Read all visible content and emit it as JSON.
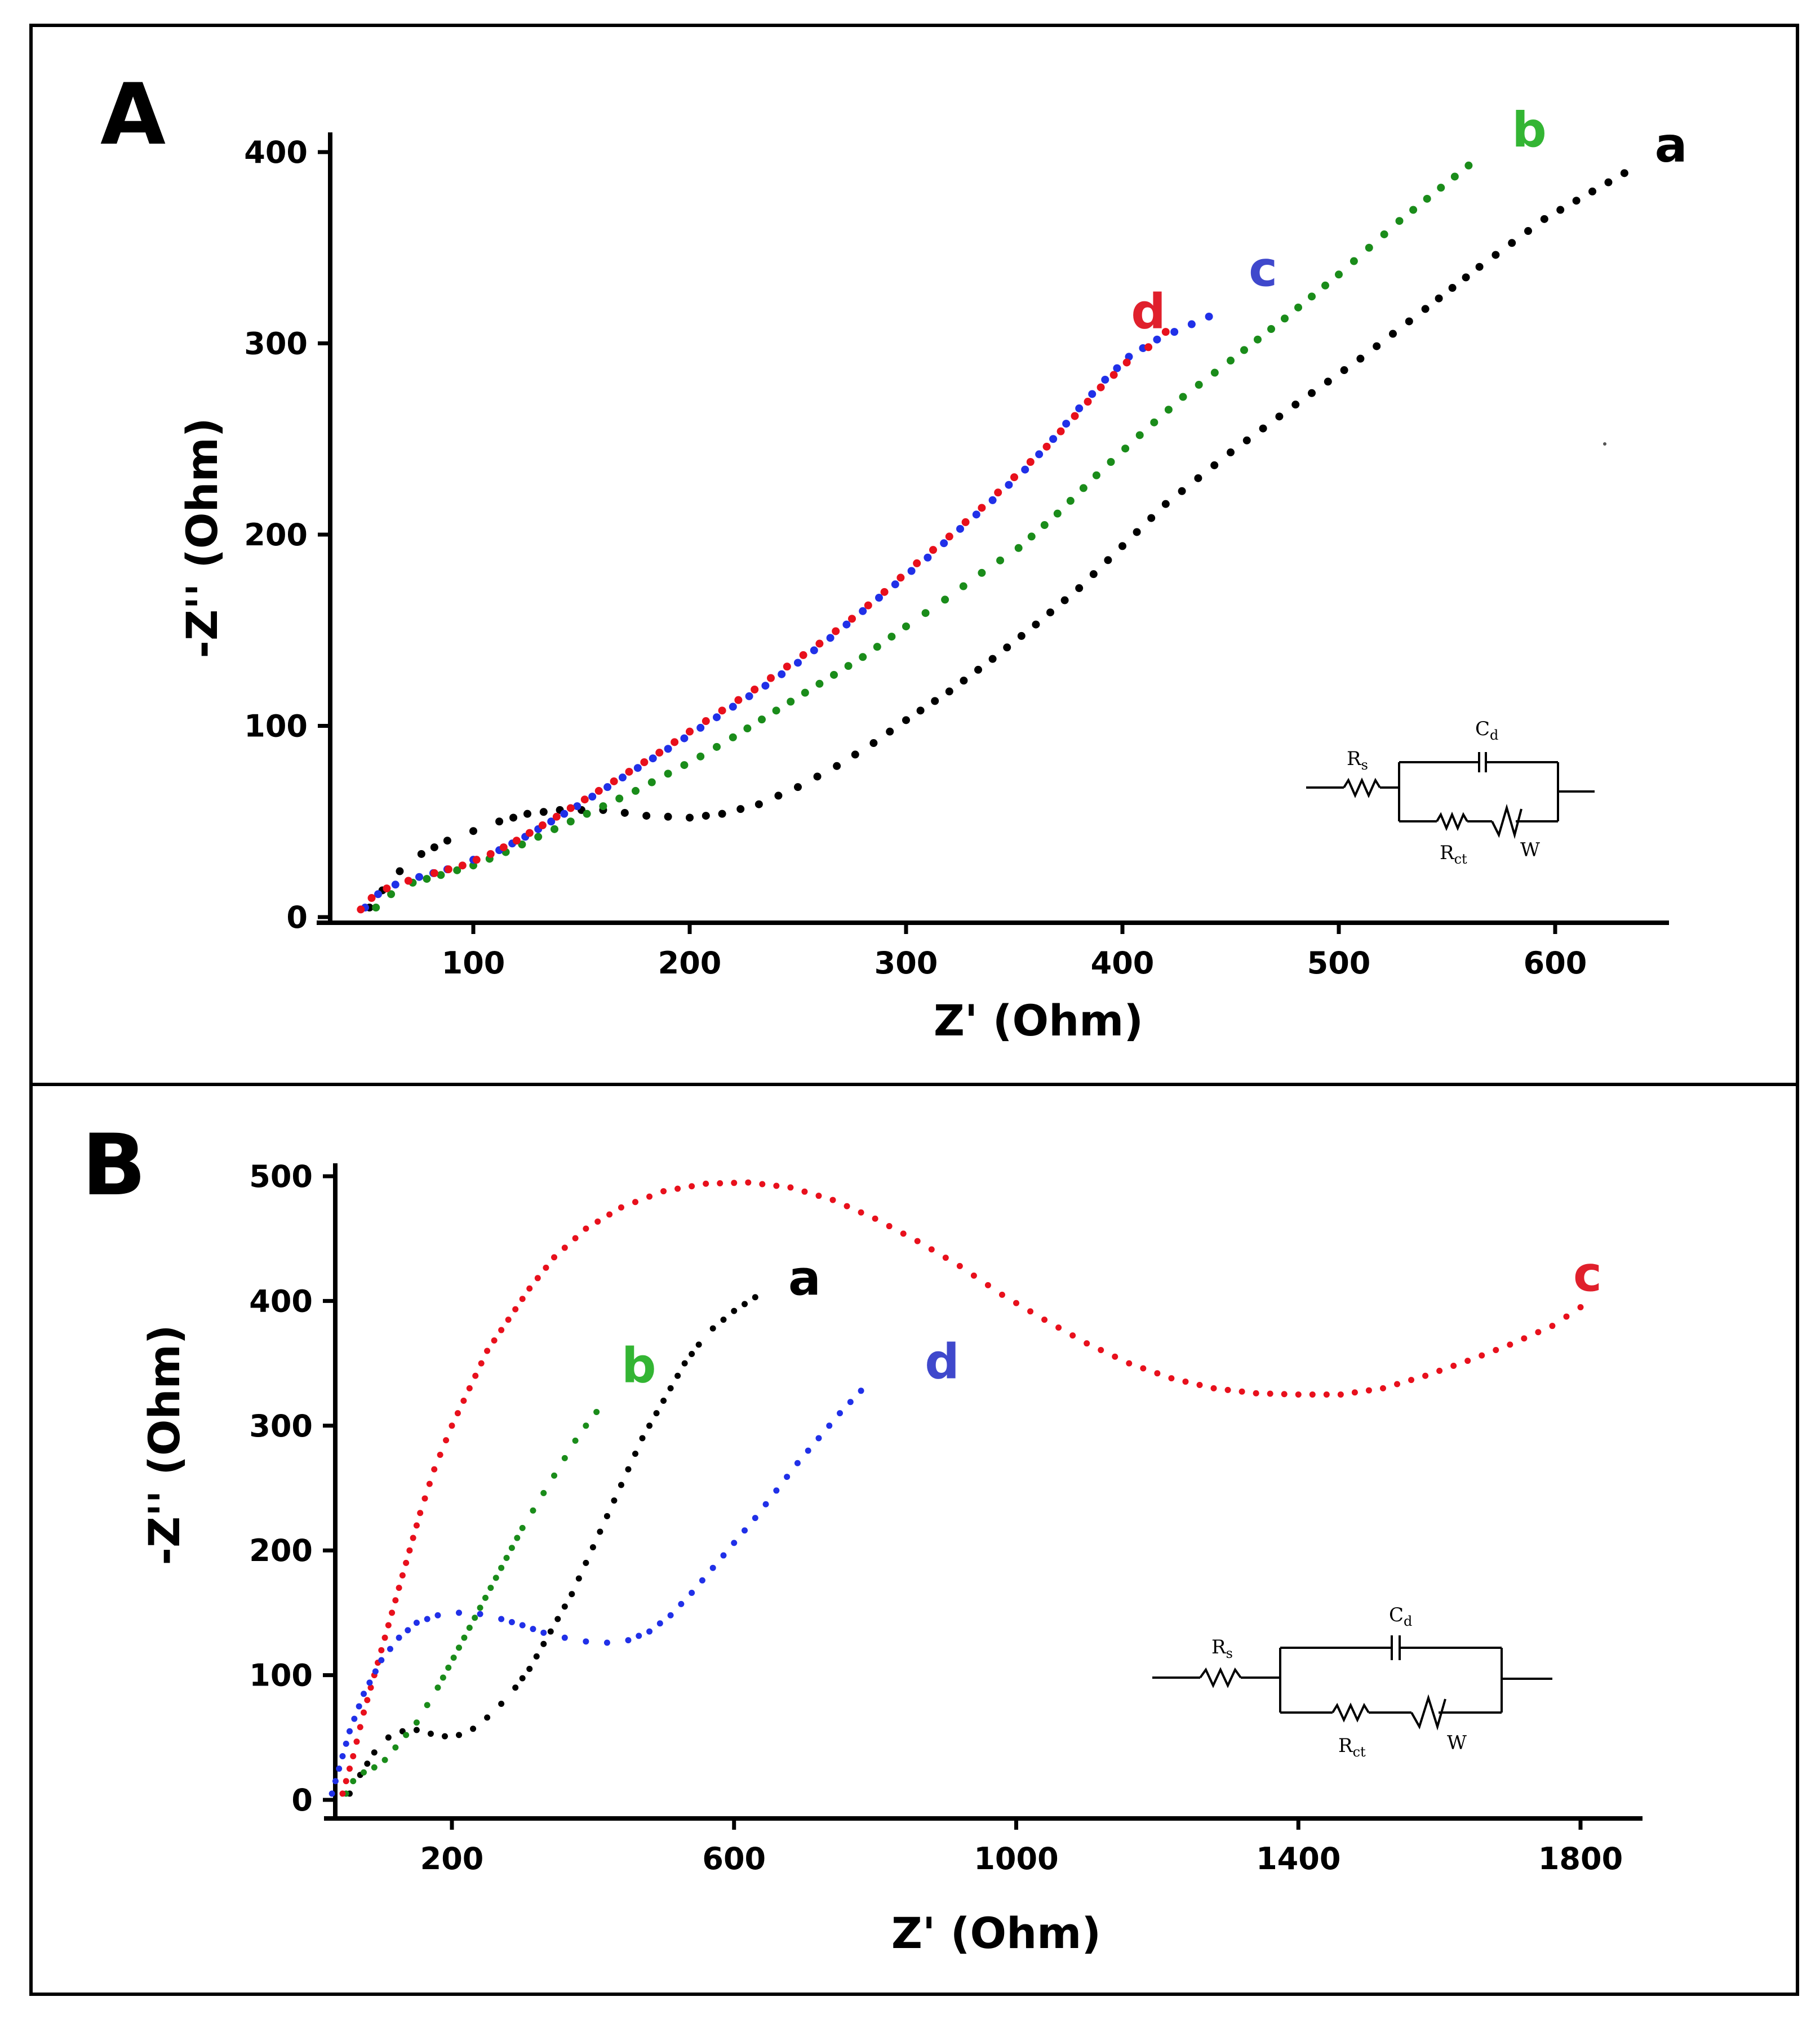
{
  "colors": {
    "a": "#000000",
    "b": "#1a8c1a",
    "c": "#e8101c",
    "d": "#2030e8",
    "label_b": "#33b533",
    "label_c_A": "#3f48cc",
    "label_d_A": "#e0202c",
    "label_c_B": "#e0202c",
    "label_d_B": "#3f48cc"
  },
  "chart_data": [
    {
      "panel": "A",
      "type": "scatter",
      "panel_label": "A",
      "xlabel": "Z' (Ohm)",
      "ylabel": "-Z'' (Ohm)",
      "xlim": [
        40,
        650
      ],
      "ylim": [
        -3,
        410
      ],
      "xticks": [
        100,
        200,
        300,
        400,
        500,
        600
      ],
      "yticks": [
        0,
        100,
        200,
        300,
        400
      ],
      "xtick_labels": [
        "100",
        "200",
        "300",
        "400",
        "500",
        "600"
      ],
      "ytick_labels": [
        "0",
        "100",
        "200",
        "300",
        "400"
      ],
      "circuit": {
        "rs": "R",
        "rs_sub": "s",
        "cd": "C",
        "cd_sub": "d",
        "rct": "R",
        "rct_sub": "ct",
        "w": "W"
      },
      "series": [
        {
          "name": "a",
          "label": "a",
          "color_key": "a",
          "label_color_key": "a",
          "label_pos": [
            646,
            395
          ],
          "label_anchor": "start",
          "points": [
            [
              52,
              5
            ],
            [
              58,
              14
            ],
            [
              66,
              24
            ],
            [
              76,
              33
            ],
            [
              88,
              40
            ],
            [
              100,
              45
            ],
            [
              112,
              50
            ],
            [
              125,
              54
            ],
            [
              140,
              56
            ],
            [
              160,
              56
            ],
            [
              180,
              53
            ],
            [
              200,
              52
            ],
            [
              215,
              54
            ],
            [
              232,
              59
            ],
            [
              250,
              68
            ],
            [
              268,
              79
            ],
            [
              285,
              91
            ],
            [
              300,
              103
            ],
            [
              320,
              118
            ],
            [
              340,
              135
            ],
            [
              360,
              153
            ],
            [
              380,
              172
            ],
            [
              400,
              194
            ],
            [
              420,
              216
            ],
            [
              450,
              243
            ],
            [
              480,
              268
            ],
            [
              510,
              292
            ],
            [
              540,
              318
            ],
            [
              565,
              340
            ],
            [
              595,
              365
            ],
            [
              632,
              389
            ]
          ]
        },
        {
          "name": "b",
          "label": "b",
          "color_key": "b",
          "label_color_key": "label_b",
          "label_pos": [
            580,
            403
          ],
          "label_anchor": "start",
          "points": [
            [
              55,
              5
            ],
            [
              62,
              12
            ],
            [
              72,
              18
            ],
            [
              85,
              22
            ],
            [
              100,
              27
            ],
            [
              115,
              34
            ],
            [
              130,
              42
            ],
            [
              145,
              50
            ],
            [
              160,
              58
            ],
            [
              175,
              66
            ],
            [
              190,
              75
            ],
            [
              205,
              84
            ],
            [
              220,
              94
            ],
            [
              240,
              108
            ],
            [
              260,
              122
            ],
            [
              280,
              136
            ],
            [
              300,
              152
            ],
            [
              318,
              166
            ],
            [
              335,
              180
            ],
            [
              352,
              193
            ],
            [
              370,
              211
            ],
            [
              388,
              231
            ],
            [
              408,
              252
            ],
            [
              428,
              272
            ],
            [
              450,
              291
            ],
            [
              475,
              313
            ],
            [
              500,
              336
            ],
            [
              528,
              364
            ],
            [
              560,
              393
            ]
          ]
        },
        {
          "name": "c",
          "label": "c",
          "color_key": "d",
          "label_color_key": "label_c_A",
          "label_pos": [
            465,
            330
          ],
          "label_anchor": "middle",
          "points": [
            [
              50,
              5
            ],
            [
              56,
              12
            ],
            [
              64,
              17
            ],
            [
              75,
              21
            ],
            [
              88,
              25
            ],
            [
              100,
              30
            ],
            [
              112,
              35
            ],
            [
              124,
              42
            ],
            [
              136,
              50
            ],
            [
              148,
              58
            ],
            [
              162,
              68
            ],
            [
              176,
              78
            ],
            [
              190,
              88
            ],
            [
              205,
              99
            ],
            [
              220,
              110
            ],
            [
              235,
              121
            ],
            [
              250,
              133
            ],
            [
              265,
              146
            ],
            [
              280,
              160
            ],
            [
              295,
              174
            ],
            [
              310,
              188
            ],
            [
              325,
              203
            ],
            [
              340,
              218
            ],
            [
              355,
              234
            ],
            [
              368,
              250
            ],
            [
              380,
              266
            ],
            [
              392,
              281
            ],
            [
              403,
              293
            ],
            [
              416,
              302
            ],
            [
              440,
              314
            ]
          ]
        },
        {
          "name": "d",
          "label": "d",
          "color_key": "c",
          "label_color_key": "label_d_A",
          "label_pos": [
            412,
            308
          ],
          "label_anchor": "middle",
          "points": [
            [
              48,
              4
            ],
            [
              53,
              10
            ],
            [
              60,
              15
            ],
            [
              70,
              19
            ],
            [
              82,
              23
            ],
            [
              95,
              27
            ],
            [
              108,
              33
            ],
            [
              120,
              40
            ],
            [
              132,
              48
            ],
            [
              145,
              57
            ],
            [
              158,
              66
            ],
            [
              172,
              76
            ],
            [
              186,
              86
            ],
            [
              200,
              97
            ],
            [
              215,
              108
            ],
            [
              230,
              119
            ],
            [
              245,
              131
            ],
            [
              260,
              143
            ],
            [
              275,
              156
            ],
            [
              290,
              170
            ],
            [
              305,
              185
            ],
            [
              320,
              199
            ],
            [
              335,
              214
            ],
            [
              350,
              230
            ],
            [
              365,
              246
            ],
            [
              378,
              262
            ],
            [
              390,
              277
            ],
            [
              402,
              290
            ],
            [
              412,
              298
            ],
            [
              420,
              306
            ]
          ]
        }
      ]
    },
    {
      "panel": "B",
      "type": "scatter",
      "panel_label": "B",
      "xlabel": "Z' (Ohm)",
      "ylabel": "-Z'' (Ohm)",
      "xlim": [
        0,
        1880
      ],
      "ylim": [
        -8,
        505
      ],
      "xticks": [
        200,
        600,
        1000,
        1400,
        1800
      ],
      "yticks": [
        0,
        100,
        200,
        300,
        400,
        500
      ],
      "xtick_labels": [
        "200",
        "600",
        "1000",
        "1400",
        "1800"
      ],
      "ytick_labels": [
        "0",
        "100",
        "200",
        "300",
        "400",
        "500"
      ],
      "circuit": {
        "rs": "R",
        "rs_sub": "s",
        "cd": "C",
        "cd_sub": "d",
        "rct": "R",
        "rct_sub": "ct",
        "w": "W"
      },
      "series": [
        {
          "name": "a",
          "label": "a",
          "color_key": "a",
          "label_color_key": "a",
          "label_pos": [
            700,
            405
          ],
          "label_anchor": "middle",
          "points": [
            [
              55,
              5
            ],
            [
              70,
              20
            ],
            [
              90,
              38
            ],
            [
              110,
              50
            ],
            [
              130,
              55
            ],
            [
              150,
              56
            ],
            [
              170,
              53
            ],
            [
              190,
              51
            ],
            [
              210,
              52
            ],
            [
              230,
              57
            ],
            [
              250,
              66
            ],
            [
              270,
              77
            ],
            [
              290,
              90
            ],
            [
              310,
              105
            ],
            [
              330,
              125
            ],
            [
              350,
              145
            ],
            [
              370,
              165
            ],
            [
              390,
              190
            ],
            [
              410,
              215
            ],
            [
              430,
              240
            ],
            [
              450,
              265
            ],
            [
              470,
              290
            ],
            [
              490,
              310
            ],
            [
              510,
              330
            ],
            [
              530,
              350
            ],
            [
              550,
              365
            ],
            [
              570,
              378
            ],
            [
              600,
              392
            ],
            [
              630,
              403
            ]
          ]
        },
        {
          "name": "b",
          "label": "b",
          "color_key": "b",
          "label_color_key": "label_b",
          "label_pos": [
            465,
            335
          ],
          "label_anchor": "middle",
          "points": [
            [
              50,
              5
            ],
            [
              60,
              15
            ],
            [
              75,
              22
            ],
            [
              90,
              26
            ],
            [
              105,
              32
            ],
            [
              120,
              42
            ],
            [
              135,
              52
            ],
            [
              150,
              62
            ],
            [
              165,
              76
            ],
            [
              180,
              90
            ],
            [
              195,
              106
            ],
            [
              210,
              122
            ],
            [
              225,
              138
            ],
            [
              240,
              154
            ],
            [
              255,
              170
            ],
            [
              270,
              186
            ],
            [
              285,
              202
            ],
            [
              300,
              218
            ],
            [
              315,
              232
            ],
            [
              330,
              246
            ],
            [
              345,
              260
            ],
            [
              360,
              274
            ],
            [
              375,
              288
            ],
            [
              390,
              300
            ],
            [
              405,
              311
            ]
          ]
        },
        {
          "name": "c",
          "label": "c",
          "color_key": "c",
          "label_color_key": "label_c_B",
          "label_pos": [
            1810,
            408
          ],
          "label_anchor": "middle",
          "points": [
            [
              45,
              5
            ],
            [
              60,
              35
            ],
            [
              75,
              70
            ],
            [
              95,
              110
            ],
            [
              115,
              150
            ],
            [
              135,
              190
            ],
            [
              155,
              230
            ],
            [
              175,
              265
            ],
            [
              200,
              300
            ],
            [
              225,
              330
            ],
            [
              250,
              360
            ],
            [
              280,
              385
            ],
            [
              310,
              410
            ],
            [
              345,
              435
            ],
            [
              390,
              458
            ],
            [
              440,
              475
            ],
            [
              500,
              488
            ],
            [
              560,
              494
            ],
            [
              620,
              495
            ],
            [
              680,
              491
            ],
            [
              740,
              481
            ],
            [
              800,
              466
            ],
            [
              860,
              448
            ],
            [
              920,
              428
            ],
            [
              980,
              405
            ],
            [
              1040,
              385
            ],
            [
              1100,
              366
            ],
            [
              1160,
              350
            ],
            [
              1220,
              338
            ],
            [
              1280,
              330
            ],
            [
              1340,
              326
            ],
            [
              1400,
              325
            ],
            [
              1460,
              325
            ],
            [
              1520,
              330
            ],
            [
              1580,
              340
            ],
            [
              1640,
              352
            ],
            [
              1700,
              365
            ],
            [
              1760,
              380
            ],
            [
              1800,
              395
            ]
          ]
        },
        {
          "name": "d",
          "label": "d",
          "color_key": "d",
          "label_color_key": "label_d_B",
          "label_pos": [
            895,
            338
          ],
          "label_anchor": "middle",
          "points": [
            [
              30,
              5
            ],
            [
              40,
              25
            ],
            [
              55,
              55
            ],
            [
              75,
              85
            ],
            [
              100,
              112
            ],
            [
              125,
              130
            ],
            [
              150,
              142
            ],
            [
              180,
              148
            ],
            [
              210,
              150
            ],
            [
              240,
              149
            ],
            [
              270,
              145
            ],
            [
              300,
              140
            ],
            [
              330,
              134
            ],
            [
              360,
              130
            ],
            [
              390,
              127
            ],
            [
              420,
              126
            ],
            [
              450,
              128
            ],
            [
              480,
              135
            ],
            [
              510,
              148
            ],
            [
              540,
              166
            ],
            [
              570,
              186
            ],
            [
              600,
              206
            ],
            [
              630,
              226
            ],
            [
              660,
              248
            ],
            [
              690,
              270
            ],
            [
              720,
              290
            ],
            [
              750,
              310
            ],
            [
              780,
              328
            ]
          ]
        }
      ]
    }
  ]
}
